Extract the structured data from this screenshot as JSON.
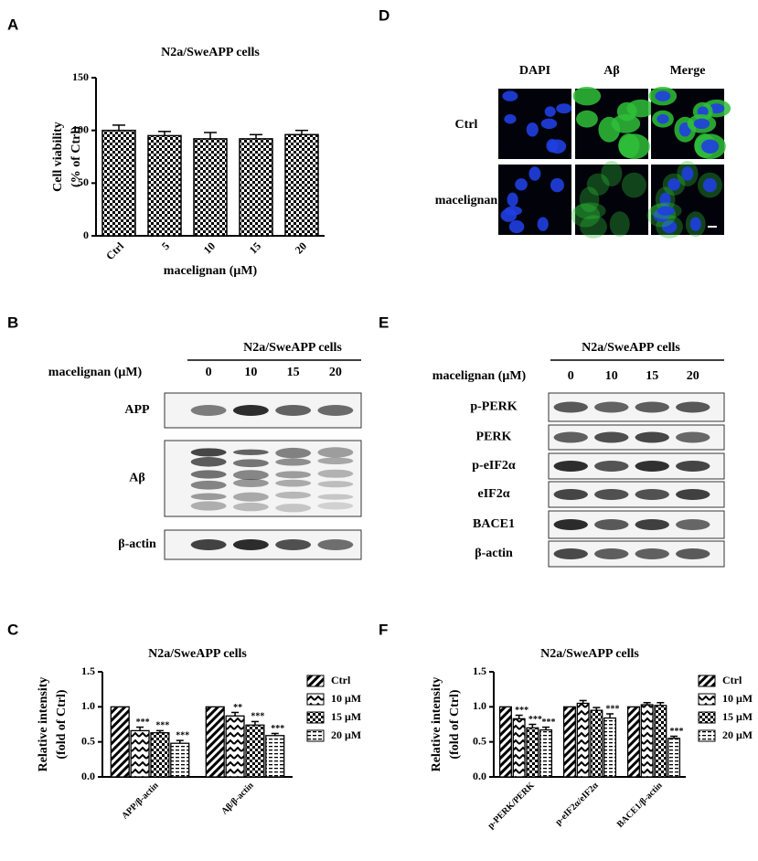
{
  "panels": [
    "A",
    "B",
    "C",
    "D",
    "E",
    "F"
  ],
  "chart_data": [
    {
      "type": "bar",
      "title": "N2a/SweAPP cells",
      "ylabel": [
        "Cell viability",
        "(% of Ctrl)"
      ],
      "xlabel": "macelignan (μM)",
      "categories": [
        "Ctrl",
        "5",
        "10",
        "15",
        "20"
      ],
      "values": [
        100,
        95,
        92,
        92,
        96
      ],
      "errors": [
        5,
        4,
        6,
        4,
        4
      ],
      "color": "#000000",
      "pattern": "checker",
      "ylim": [
        0,
        150
      ],
      "yticks": [
        0,
        50,
        100,
        150
      ]
    },
    {
      "type": "grouped_bar",
      "title": "N2a/SweAPP cells",
      "ylabel": [
        "Relative intensity",
        "(fold of Ctrl)"
      ],
      "categories": [
        "APP/β-actin",
        "Aβ/β-actin"
      ],
      "series": [
        {
          "name": "Ctrl",
          "color": "#000000",
          "pattern": "diagonal",
          "values": [
            1,
            1
          ]
        },
        {
          "name": "10 μM",
          "color": "#000000",
          "pattern": "zigzag",
          "values": [
            0.66,
            0.87
          ],
          "errors": [
            0.05,
            0.05
          ],
          "annotations": [
            "***",
            "**"
          ]
        },
        {
          "name": "15 μM",
          "color": "#000000",
          "pattern": "checker",
          "values": [
            0.63,
            0.74
          ],
          "errors": [
            0.03,
            0.05
          ],
          "annotations": [
            "***",
            "***"
          ]
        },
        {
          "name": "20 μM",
          "color": "#000000",
          "pattern": "dash",
          "values": [
            0.48,
            0.59
          ],
          "errors": [
            0.04,
            0.03
          ],
          "annotations": [
            "***",
            "***"
          ]
        }
      ],
      "ylim": [
        0,
        1.5
      ],
      "yticks": [
        {
          "value": 0,
          "label": "0.0"
        },
        {
          "value": 0.5,
          "label": "0.5"
        },
        {
          "value": 1,
          "label": "1.0"
        },
        {
          "value": 1.5,
          "label": "1.5"
        }
      ]
    },
    {
      "type": "grouped_bar",
      "title": "N2a/SweAPP cells",
      "ylabel": [
        "Relative intensity",
        "(fold of Ctrl)"
      ],
      "categories": [
        "p-PERK/PERK",
        "p-eIF2α/eIF2α",
        "BACE1/β-actin"
      ],
      "series": [
        {
          "name": "Ctrl",
          "color": "#000000",
          "pattern": "diagonal",
          "values": [
            1,
            1,
            1
          ]
        },
        {
          "name": "10 μM",
          "color": "#000000",
          "pattern": "zigzag",
          "values": [
            0.83,
            1.05,
            1.03
          ],
          "errors": [
            0.05,
            0.04,
            0.03
          ],
          "annotations": [
            "***",
            null,
            null
          ]
        },
        {
          "name": "15 μM",
          "color": "#000000",
          "pattern": "checker",
          "values": [
            0.7,
            0.95,
            1.02
          ],
          "errors": [
            0.05,
            0.04,
            0.04
          ],
          "annotations": [
            "***",
            null,
            null
          ]
        },
        {
          "name": "20 μM",
          "color": "#000000",
          "pattern": "dash",
          "values": [
            0.67,
            0.84,
            0.55
          ],
          "errors": [
            0.04,
            0.06,
            0.03
          ],
          "annotations": [
            "***",
            "***",
            "***"
          ]
        }
      ],
      "ylim": [
        0,
        1.5
      ],
      "yticks": [
        {
          "value": 0,
          "label": "0.0"
        },
        {
          "value": 0.5,
          "label": "0.5"
        },
        {
          "value": 1,
          "label": "1.0"
        },
        {
          "value": 1.5,
          "label": "1.5"
        }
      ]
    }
  ],
  "blots": [
    {
      "title": "N2a/SweAPP cells",
      "treatment": "macelignan (μM)",
      "doses": [
        "0",
        "10",
        "15",
        "20"
      ],
      "rows": [
        "APP",
        "Aβ",
        "β-actin"
      ]
    },
    {
      "title": "N2a/SweAPP cells",
      "treatment": "macelignan (μM)",
      "doses": [
        "0",
        "10",
        "15",
        "20"
      ],
      "rows": [
        "p-PERK",
        "PERK",
        "p-eIF2α",
        "eIF2α",
        "BACE1",
        "β-actin"
      ]
    }
  ],
  "microscopy": {
    "columns": [
      "DAPI",
      "Aβ",
      "Merge"
    ],
    "rows": [
      "Ctrl",
      "macelignan"
    ]
  }
}
